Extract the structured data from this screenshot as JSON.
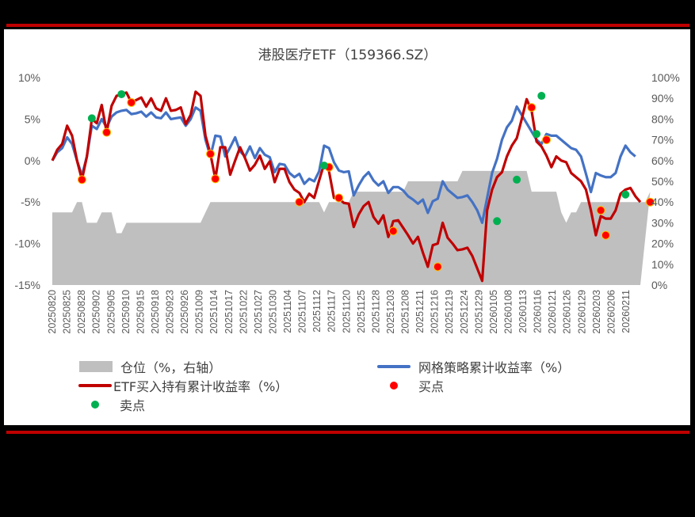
{
  "header": {
    "title": "港股医疗ETF（159366.SZ）"
  },
  "colors": {
    "etf": "#c00000",
    "grid": "#4472c4",
    "position": "#bfbfbf",
    "buy": "#ff0000",
    "buy_edge": "#ffc000",
    "sell": "#00b050",
    "rule": "#c00000"
  },
  "legend": {
    "position": "仓位（%，右轴）",
    "grid": "网格策略累计收益率（%）",
    "etf": "ETF买入持有累计收益率（%）",
    "buy": "买点",
    "sell": "卖点"
  },
  "chart_data": {
    "type": "line",
    "title": "港股医疗ETF（159366.SZ）",
    "xlabel": "",
    "ylabel": "",
    "ylim": [
      -15,
      10
    ],
    "y2lim": [
      0,
      100
    ],
    "yticks": [
      "10%",
      "5%",
      "0%",
      "-5%",
      "-10%",
      "-15%"
    ],
    "y2ticks": [
      "100%",
      "90%",
      "80%",
      "70%",
      "60%",
      "50%",
      "40%",
      "30%",
      "20%",
      "10%",
      "0%"
    ],
    "xtick_labels": [
      "20250820",
      "20250825",
      "20250828",
      "20250902",
      "20250905",
      "20250910",
      "20250915",
      "20250918",
      "20250923",
      "20250926",
      "20251009",
      "20251014",
      "20251017",
      "20251022",
      "20251027",
      "20251030",
      "20251104",
      "20251107",
      "20251112",
      "20251117",
      "20251120",
      "20251125",
      "20251128",
      "20251203",
      "20251208",
      "20251211",
      "20251216",
      "20251219",
      "20251224",
      "20251229",
      "20260105",
      "20260108",
      "20260113",
      "20260116",
      "20260121",
      "20260126",
      "20260129",
      "20260203",
      "20260206",
      "20260211"
    ],
    "legend_position": "bottom",
    "grid": false,
    "series": [
      {
        "name": "ETF买入持有累计收益率（%）",
        "axis": "left",
        "type": "line",
        "values": [
          0,
          1.3,
          2,
          4.2,
          3,
          0,
          -2.3,
          0.5,
          5,
          4.5,
          6.7,
          3.4,
          6.6,
          7.8,
          8,
          8.2,
          7,
          7.3,
          7.6,
          6.5,
          7.5,
          6.3,
          6,
          7.5,
          6,
          6.1,
          6.4,
          4.4,
          5.5,
          8.3,
          7.8,
          3,
          0.8,
          -2.2,
          1.6,
          1.6,
          -1.7,
          0,
          1.6,
          0.3,
          -1.2,
          -0.5,
          0.6,
          -1,
          -0.1,
          -2.6,
          -1,
          -1,
          -2.6,
          -3.5,
          -3.9,
          -5,
          -4,
          -4.5,
          -2.4,
          -0.4,
          -1.3,
          -4.5,
          -4.6,
          -5.1,
          -5.2,
          -8,
          -6.5,
          -5.5,
          -5,
          -6.8,
          -7.6,
          -6.6,
          -9.2,
          -7.3,
          -7.2,
          -8.1,
          -9,
          -10,
          -9.2,
          -11.1,
          -12.8,
          -10.2,
          -10,
          -7.5,
          -9.3,
          -10,
          -10.8,
          -10.7,
          -10.5,
          -11.5,
          -13,
          -14.5,
          -6,
          -3.5,
          -2,
          -1.4,
          0.5,
          1.8,
          2.7,
          5,
          7.4,
          6,
          2.3,
          1.7,
          0.6,
          -0.8,
          0.5,
          0,
          -0.2,
          -1.5,
          -2,
          -2.5,
          -3.5,
          -6,
          -9,
          -6.7,
          -7,
          -7,
          -6,
          -4,
          -3.5,
          -3.3,
          -4.3,
          -5
        ]
      },
      {
        "name": "网格策略累计收益率（%）",
        "axis": "left",
        "type": "line",
        "values": [
          0,
          1,
          1.5,
          2.8,
          2,
          0,
          -1.8,
          0.5,
          4.2,
          3.8,
          5,
          4,
          5.3,
          5.8,
          6,
          6.1,
          5.6,
          5.7,
          5.9,
          5.3,
          5.8,
          5.2,
          5.1,
          5.8,
          5,
          5.1,
          5.2,
          4.2,
          5,
          6.4,
          6,
          2.5,
          0.5,
          3,
          2.9,
          0.5,
          1.6,
          2.8,
          1.1,
          0.5,
          1.7,
          0.3,
          1.5,
          0.7,
          0.4,
          -1.4,
          -0.4,
          -0.5,
          -1.5,
          -2,
          -1.6,
          -2.8,
          -2.2,
          -2.5,
          -1.3,
          1.8,
          1.5,
          -0.2,
          -1.2,
          -1.4,
          -1.3,
          -4.2,
          -3,
          -2,
          -1.4,
          -2.4,
          -3,
          -2.5,
          -3.9,
          -3.2,
          -3.2,
          -3.6,
          -4.3,
          -4.7,
          -5.2,
          -4.7,
          -6.3,
          -4.9,
          -4.6,
          -2.5,
          -3.5,
          -4,
          -4.5,
          -4.4,
          -4.2,
          -5,
          -6,
          -7.5,
          -4.5,
          -1.5,
          0.2,
          2.5,
          4,
          4.8,
          6.5,
          5.5,
          4.5,
          3.5,
          2.5,
          2,
          3.2,
          3,
          3,
          2.5,
          2,
          1.5,
          1.3,
          0.5,
          -1.6,
          -3.8,
          -1.5,
          -1.8,
          -2,
          -2,
          -1.5,
          0.5,
          1.8,
          1,
          0.5
        ]
      },
      {
        "name": "仓位（%，右轴）",
        "axis": "right",
        "type": "area",
        "values": [
          35,
          35,
          35,
          35,
          35,
          40,
          40,
          30,
          30,
          30,
          35,
          35,
          35,
          25,
          25,
          30,
          30,
          30,
          30,
          30,
          30,
          30,
          30,
          30,
          30,
          30,
          30,
          30,
          30,
          30,
          30,
          35,
          40,
          40,
          40,
          40,
          40,
          40,
          40,
          40,
          40,
          40,
          40,
          40,
          40,
          40,
          40,
          40,
          40,
          40,
          40,
          40,
          40,
          40,
          40,
          35,
          40,
          40,
          40,
          40,
          40,
          45,
          45,
          45,
          45,
          45,
          45,
          45,
          45,
          45,
          45,
          45,
          50,
          50,
          50,
          50,
          50,
          50,
          50,
          50,
          50,
          50,
          50,
          55,
          55,
          55,
          55,
          55,
          55,
          55,
          55,
          55,
          55,
          55,
          55,
          55,
          55,
          45,
          45,
          45,
          45,
          45,
          45,
          35,
          30,
          35,
          35,
          40,
          40,
          40,
          40,
          40,
          40,
          40,
          40,
          40,
          40,
          40,
          40,
          40,
          40,
          45
        ]
      },
      {
        "name": "买点",
        "type": "scatter",
        "points": [
          [
            6,
            -2.3
          ],
          [
            11,
            3.4
          ],
          [
            16,
            7
          ],
          [
            32,
            0.8
          ],
          [
            33,
            -2.2
          ],
          [
            50,
            -5
          ],
          [
            56,
            -0.8
          ],
          [
            58,
            -4.5
          ],
          [
            69,
            -8.5
          ],
          [
            78,
            -12.8
          ],
          [
            97,
            6.4
          ],
          [
            100,
            2.5
          ],
          [
            111,
            -6
          ],
          [
            112,
            -9
          ],
          [
            121,
            -5
          ]
        ]
      },
      {
        "name": "卖点",
        "type": "scatter",
        "points": [
          [
            8,
            5.1
          ],
          [
            14,
            8
          ],
          [
            55,
            -0.6
          ],
          [
            90,
            -7.3
          ],
          [
            94,
            -2.3
          ],
          [
            98,
            3.2
          ],
          [
            99,
            7.8
          ],
          [
            116,
            -4.1
          ]
        ]
      }
    ]
  }
}
